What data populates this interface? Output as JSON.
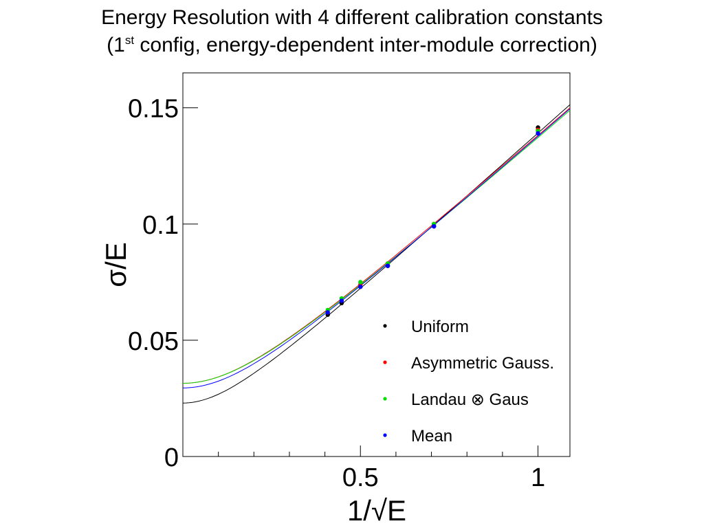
{
  "chart_data": {
    "type": "scatter",
    "title_line1": "Energy Resolution with 4 different calibration constants",
    "title_line2_prefix": "(1",
    "title_line2_sup": "st",
    "title_line2_suffix": " config, energy-dependent inter-module correction)",
    "xlabel": "1/√E",
    "ylabel": "σ/E",
    "xlim": [
      0.0,
      1.09
    ],
    "ylim": [
      0.0,
      0.165
    ],
    "xticks": [
      {
        "v": 0.5,
        "label": "0.5"
      },
      {
        "v": 1,
        "label": "1"
      }
    ],
    "yticks": [
      {
        "v": 0,
        "label": "0"
      },
      {
        "v": 0.05,
        "label": "0.05"
      },
      {
        "v": 0.1,
        "label": "0.1"
      },
      {
        "v": 0.15,
        "label": "0.15"
      }
    ],
    "legend_position": "lower-right",
    "series": [
      {
        "name": "Uniform",
        "color": "#000000",
        "fit": {
          "a": 0.1372,
          "b": 0.023
        },
        "points": [
          [
            0.408,
            0.061
          ],
          [
            0.447,
            0.066
          ],
          [
            0.5,
            0.073
          ],
          [
            0.577,
            0.082
          ],
          [
            0.707,
            0.099
          ],
          [
            1.0,
            0.1415
          ]
        ]
      },
      {
        "name": "Asymmetric Gauss.",
        "color": "#ff0000",
        "fit": {
          "a": 0.1345,
          "b": 0.0315
        },
        "points": [
          [
            0.408,
            0.062
          ],
          [
            0.447,
            0.067
          ],
          [
            0.5,
            0.074
          ],
          [
            0.577,
            0.083
          ],
          [
            0.707,
            0.1
          ],
          [
            1.0,
            0.1405
          ]
        ]
      },
      {
        "name": "Landau ⊗ Gaus",
        "color": "#00dd00",
        "fit": {
          "a": 0.1335,
          "b": 0.0315
        },
        "points": [
          [
            0.408,
            0.063
          ],
          [
            0.447,
            0.068
          ],
          [
            0.5,
            0.075
          ],
          [
            0.577,
            0.083
          ],
          [
            0.707,
            0.1
          ],
          [
            1.0,
            0.14
          ]
        ]
      },
      {
        "name": "Mean",
        "color": "#0000ff",
        "fit": {
          "a": 0.1345,
          "b": 0.0295
        },
        "points": [
          [
            0.408,
            0.062
          ],
          [
            0.447,
            0.067
          ],
          [
            0.5,
            0.073
          ],
          [
            0.577,
            0.082
          ],
          [
            0.707,
            0.099
          ],
          [
            1.0,
            0.139
          ]
        ]
      }
    ]
  }
}
